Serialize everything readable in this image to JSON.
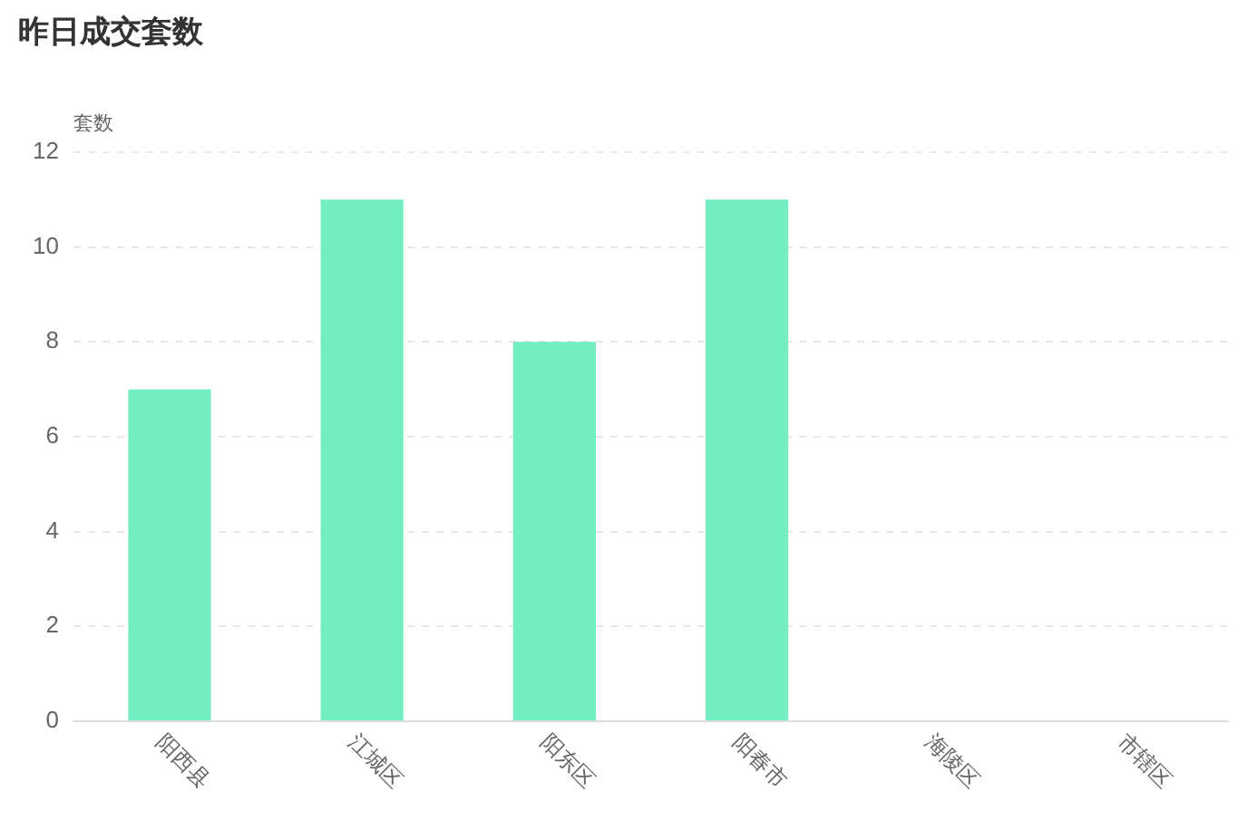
{
  "chart_data": {
    "type": "bar",
    "title": "昨日成交套数",
    "ylabel": "套数",
    "categories": [
      "阳西县",
      "江城区",
      "阳东区",
      "阳春市",
      "海陵区",
      "市辖区"
    ],
    "values": [
      7,
      11,
      8,
      11,
      0,
      0
    ],
    "color": "#73eec0",
    "ylim": [
      0,
      12
    ],
    "yticks": [
      0,
      2,
      4,
      6,
      8,
      10,
      12
    ],
    "grid": "y",
    "legend": false
  }
}
